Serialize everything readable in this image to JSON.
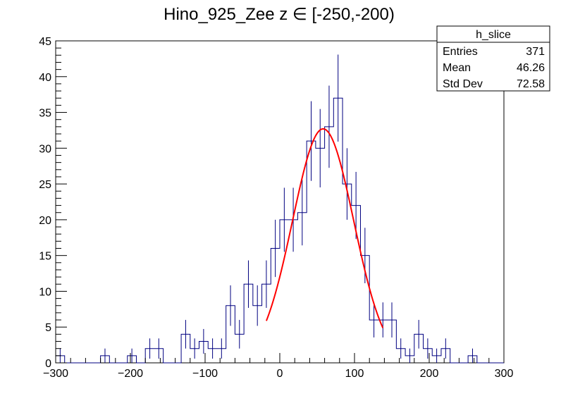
{
  "chart_data": {
    "type": "histogram",
    "title": "Hino_925_Zee z  ∈ [-250,-200)",
    "xlim": [
      -300,
      300
    ],
    "ylim": [
      0,
      45
    ],
    "x_ticks": [
      -300,
      -200,
      -100,
      0,
      100,
      200,
      300
    ],
    "y_ticks": [
      0,
      5,
      10,
      15,
      20,
      25,
      30,
      35,
      40,
      45
    ],
    "bin_width": 12,
    "bin_centers": [
      -294,
      -282,
      -270,
      -258,
      -246,
      -234,
      -222,
      -210,
      -198,
      -186,
      -174,
      -162,
      -150,
      -138,
      -126,
      -114,
      -102,
      -90,
      -78,
      -66,
      -54,
      -42,
      -30,
      -18,
      -6,
      6,
      18,
      30,
      42,
      54,
      66,
      78,
      90,
      102,
      114,
      126,
      138,
      150,
      162,
      174,
      186,
      198,
      210,
      222,
      234,
      246,
      258,
      270,
      282,
      294
    ],
    "counts": [
      1,
      0,
      0,
      0,
      0,
      1,
      0,
      0,
      1,
      0,
      2,
      2,
      0,
      0,
      4,
      2,
      3,
      2,
      2,
      8,
      4,
      11,
      8,
      11,
      16,
      20,
      20,
      21,
      31,
      30,
      33,
      37,
      25,
      22,
      15,
      6,
      6,
      6,
      2,
      1,
      4,
      2,
      1,
      2,
      0,
      0,
      1,
      0,
      0,
      0
    ],
    "fit": {
      "type": "gaussian",
      "amplitude": 32.7,
      "mean": 58,
      "sigma": 41,
      "range": [
        -18,
        138
      ],
      "color": "#ff0000"
    },
    "stats_box": {
      "title": "h_slice",
      "rows": [
        {
          "label": "Entries",
          "value": "371"
        },
        {
          "label": "Mean",
          "value": "46.26"
        },
        {
          "label": "Std Dev",
          "value": "72.58"
        }
      ]
    },
    "histogram_color": "#000080",
    "grid": false
  }
}
